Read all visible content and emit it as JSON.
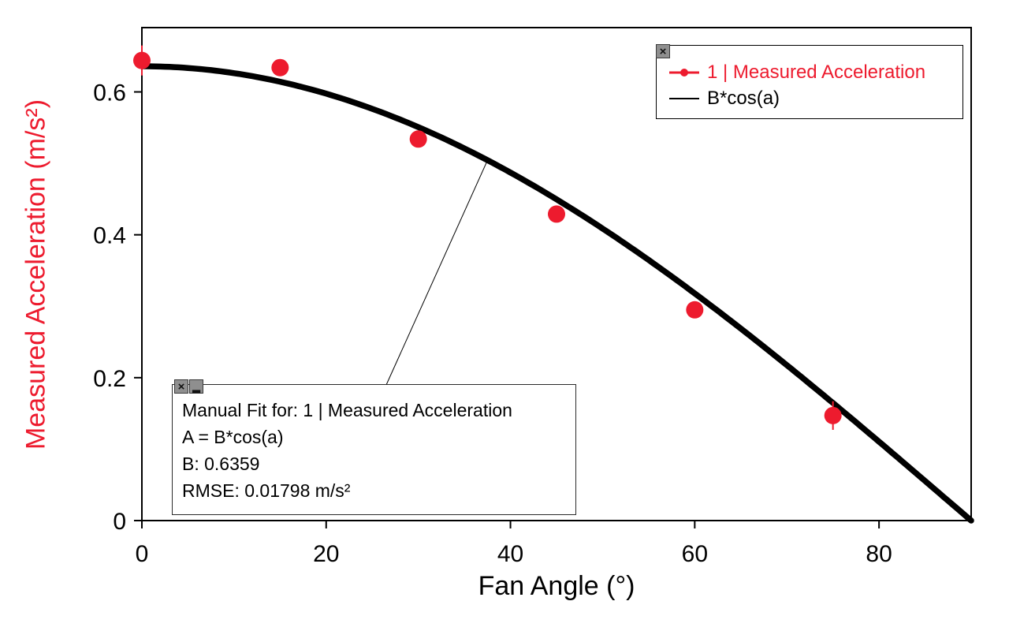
{
  "chart_data": {
    "type": "scatter",
    "title": "",
    "xlabel": "Fan Angle (°)",
    "ylabel": "Measured Acceleration (m/s²)",
    "xlim": [
      0,
      90
    ],
    "ylim": [
      0,
      0.69
    ],
    "x_ticks": [
      0,
      20,
      40,
      60,
      80
    ],
    "y_ticks": [
      0,
      0.2,
      0.4,
      0.6
    ],
    "grid": false,
    "series": [
      {
        "name": "1 | Measured Acceleration",
        "type": "scatter",
        "color": "#ed1b2e",
        "marker": "circle",
        "x": [
          0,
          15,
          30,
          45,
          60,
          75
        ],
        "y": [
          0.644,
          0.634,
          0.534,
          0.429,
          0.295,
          0.147
        ],
        "y_err": [
          0.021,
          0,
          0,
          0,
          0,
          0.02
        ]
      },
      {
        "name": "B*cos(a)",
        "type": "function",
        "expression": "B*cos(a)",
        "B": 0.6359,
        "color": "#000000",
        "stroke_width": 7.5
      }
    ],
    "legend": {
      "position": "top-right",
      "entries": [
        {
          "label": "1 | Measured Acceleration",
          "color": "#ed1b2e",
          "marker": "line-dot"
        },
        {
          "label": "B*cos(a)",
          "color": "#000000",
          "marker": "line"
        }
      ]
    },
    "annotation": {
      "lines": [
        "Manual Fit for: 1 | Measured Acceleration",
        "A = B*cos(a)",
        "B: 0.6359",
        "RMSE: 0.01798 m/s²"
      ],
      "anchor_x": 37.5,
      "anchor_y": 0.504
    },
    "icons": {
      "close": "×",
      "minimize": "▂"
    }
  }
}
